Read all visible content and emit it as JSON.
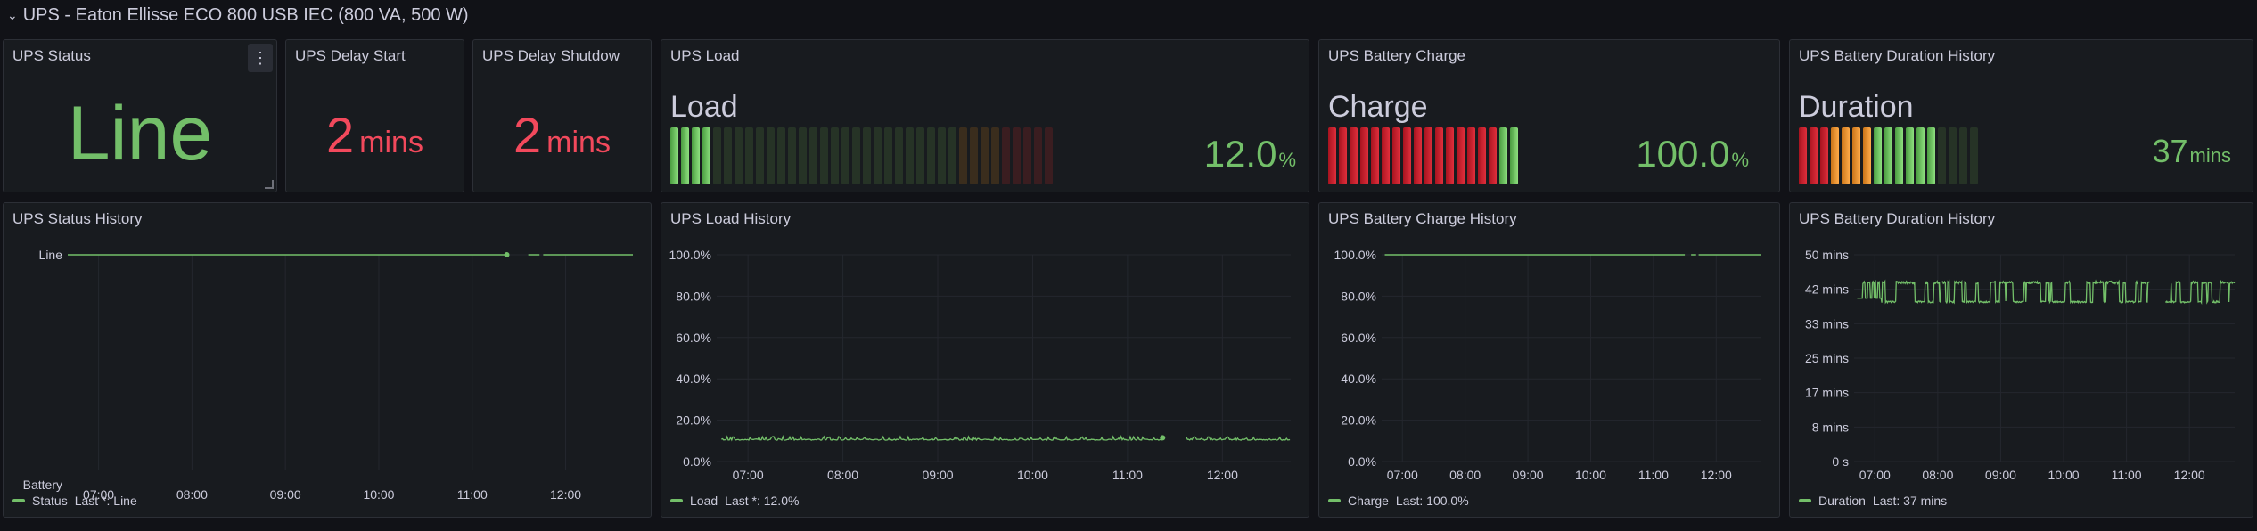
{
  "row": {
    "title": "UPS - Eaton Ellisse ECO 800 USB IEC (800 VA, 500 W)"
  },
  "stats": {
    "status": {
      "title": "UPS Status",
      "value": "Line"
    },
    "delay_start": {
      "title": "UPS Delay Start",
      "value": "2",
      "unit": "mins"
    },
    "delay_shutdown": {
      "title": "UPS Delay Shutdow",
      "value": "2",
      "unit": "mins"
    }
  },
  "gauges": {
    "load": {
      "title": "UPS Load",
      "label": "Load",
      "value": "12.0",
      "unit": "%",
      "fraction": 0.12
    },
    "charge": {
      "title": "UPS Battery Charge",
      "label": "Charge",
      "value": "100.0",
      "unit": "%",
      "fraction": 1.0
    },
    "duration": {
      "title": "UPS Battery Duration History",
      "label": "Duration",
      "value": "37",
      "unit": "mins",
      "fraction": 0.74
    }
  },
  "charts": {
    "status_history": {
      "title": "UPS Status History",
      "legend": {
        "name": "Status",
        "text": "Last *: Line"
      }
    },
    "load_history": {
      "title": "UPS Load History",
      "legend": {
        "name": "Load",
        "text": "Last *: 12.0%"
      }
    },
    "charge_history": {
      "title": "UPS Battery Charge History",
      "legend": {
        "name": "Charge",
        "text": "Last: 100.0%"
      }
    },
    "duration_history": {
      "title": "UPS Battery Duration History",
      "legend": {
        "name": "Duration",
        "text": "Last: 37 mins"
      }
    }
  },
  "colors": {
    "green": "#73bf69",
    "red": "#f2495c",
    "orange": "#ff9830",
    "panel": "#181b1f",
    "bg": "#111217"
  },
  "chart_data": [
    {
      "type": "line",
      "title": "UPS Status History",
      "x": [
        "07:00",
        "08:00",
        "09:00",
        "10:00",
        "11:00",
        "12:00"
      ],
      "yticks": [
        "Line",
        "Battery"
      ],
      "series": [
        {
          "name": "Status",
          "points": [
            {
              "t": 6.67,
              "y": 1
            },
            {
              "t": 11.37,
              "y": 1
            },
            {
              "t": 11.6,
              "y": 1
            },
            {
              "t": 11.72,
              "y": 1
            },
            {
              "t": 11.76,
              "y": 1
            },
            {
              "t": 12.72,
              "y": 1
            }
          ],
          "gaps_after_index": [
            1,
            3
          ]
        }
      ]
    },
    {
      "type": "line",
      "title": "UPS Load History",
      "x": [
        "07:00",
        "08:00",
        "09:00",
        "10:00",
        "11:00",
        "12:00"
      ],
      "yticks": [
        "0.0%",
        "20.0%",
        "40.0%",
        "60.0%",
        "80.0%",
        "100.0%"
      ],
      "ylim": [
        0,
        100
      ],
      "series": [
        {
          "name": "Load",
          "value_approx": 11,
          "range": [
            10,
            12
          ],
          "last": 12.0
        }
      ]
    },
    {
      "type": "line",
      "title": "UPS Battery Charge History",
      "x": [
        "07:00",
        "08:00",
        "09:00",
        "10:00",
        "11:00",
        "12:00"
      ],
      "yticks": [
        "0.0%",
        "20.0%",
        "40.0%",
        "60.0%",
        "80.0%",
        "100.0%"
      ],
      "ylim": [
        0,
        100
      ],
      "series": [
        {
          "name": "Charge",
          "value_approx": 100,
          "last": 100.0
        }
      ]
    },
    {
      "type": "line",
      "title": "UPS Battery Duration History",
      "x": [
        "07:00",
        "08:00",
        "09:00",
        "10:00",
        "11:00",
        "12:00"
      ],
      "yticks": [
        "0 s",
        "8 mins",
        "17 mins",
        "25 mins",
        "33 mins",
        "42 mins",
        "50 mins"
      ],
      "ylim": [
        0,
        50
      ],
      "series": [
        {
          "name": "Duration",
          "range": [
            36,
            44
          ],
          "last": 37
        }
      ]
    }
  ]
}
